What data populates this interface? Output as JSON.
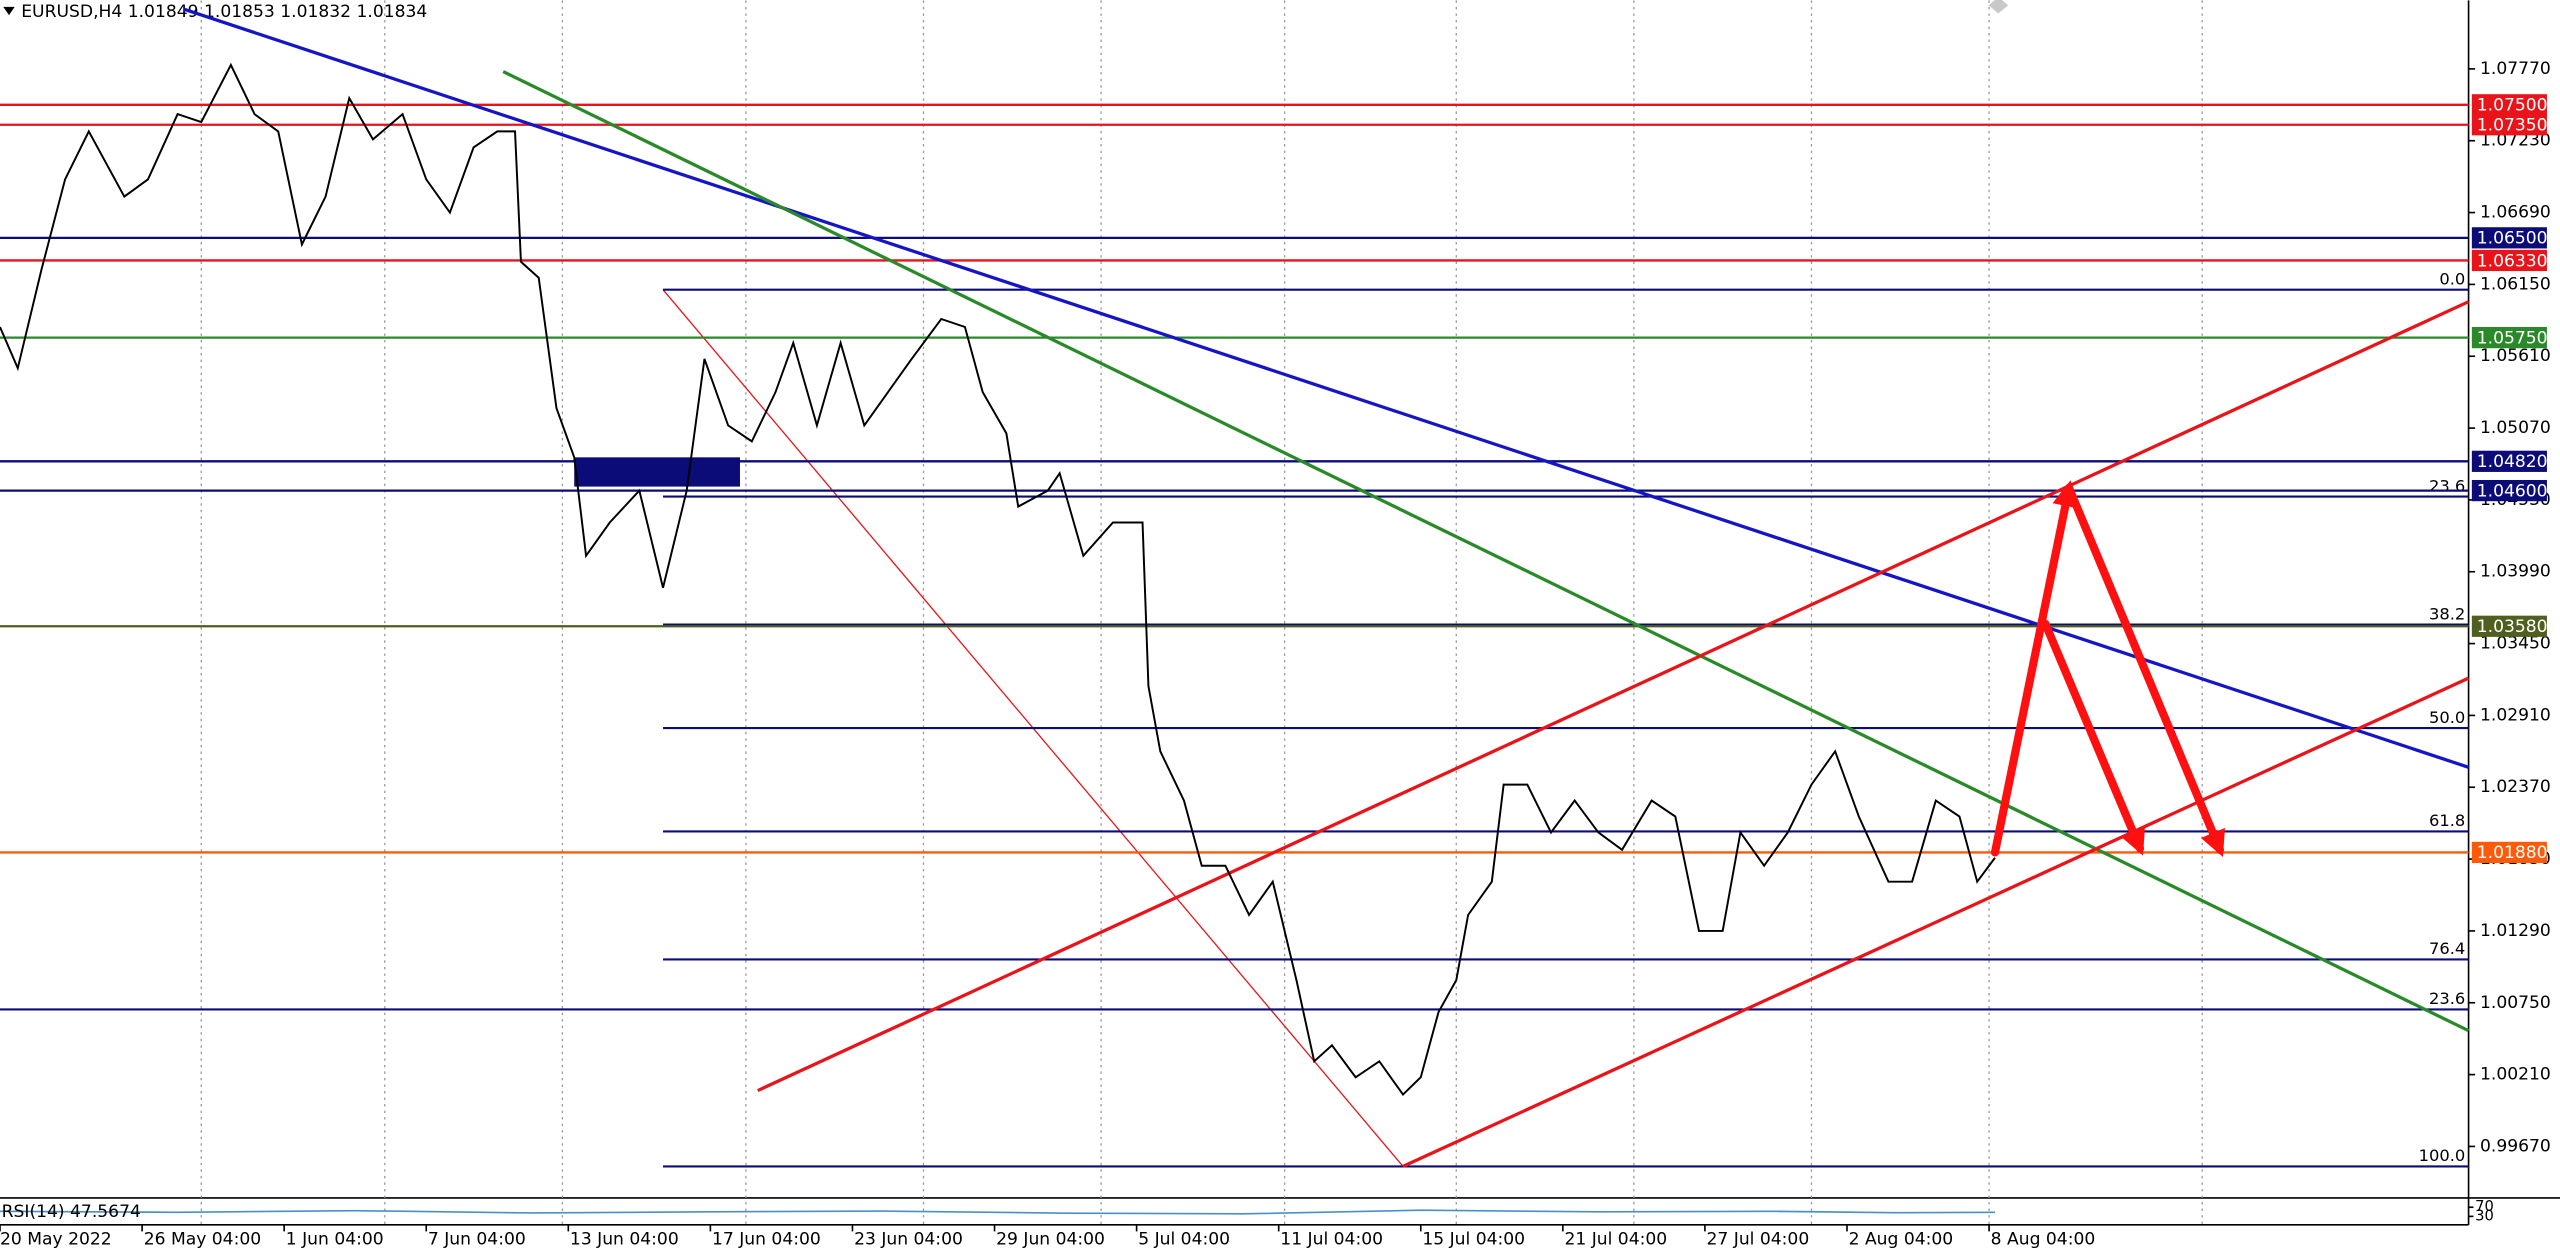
{
  "chart_data": {
    "type": "line",
    "header": "EURUSD,H4  1.01849 1.01853 1.01832 1.01834",
    "color": "#000000",
    "x": [
      0,
      3,
      7,
      11,
      15,
      21,
      25,
      30,
      34,
      39,
      43,
      47,
      51,
      55,
      59,
      63,
      68,
      72,
      76,
      80,
      84,
      87,
      88,
      91,
      94,
      97,
      99,
      103,
      108,
      112,
      116,
      119,
      123,
      127,
      131,
      134,
      138,
      142,
      146,
      150,
      154,
      159,
      163,
      166,
      170,
      172,
      177,
      179,
      183,
      188,
      193,
      194,
      196,
      200,
      203,
      207,
      211,
      215,
      219,
      222,
      225,
      229,
      233,
      237,
      240,
      243,
      246,
      248,
      252,
      254,
      258,
      262,
      266,
      270,
      274,
      279,
      283,
      287,
      291,
      294,
      298,
      302,
      306,
      310,
      314,
      319,
      323,
      327,
      331,
      334,
      337
    ],
    "values": [
      1.0583,
      1.0552,
      1.0626,
      1.0694,
      1.073,
      1.0681,
      1.0694,
      1.0743,
      1.0737,
      1.078,
      1.0743,
      1.073,
      1.0645,
      1.0681,
      1.0755,
      1.0724,
      1.0743,
      1.0694,
      1.0669,
      1.0718,
      1.073,
      1.073,
      1.0632,
      1.062,
      1.0522,
      1.0485,
      1.0411,
      1.0436,
      1.046,
      1.0387,
      1.046,
      1.0559,
      1.0509,
      1.0497,
      1.0534,
      1.0571,
      1.0509,
      1.0571,
      1.0509,
      1.0534,
      1.0559,
      1.0589,
      1.0583,
      1.0534,
      1.0503,
      1.0448,
      1.046,
      1.0473,
      1.0411,
      1.0436,
      1.0436,
      1.0313,
      1.0264,
      1.0227,
      1.0178,
      1.0178,
      1.0141,
      1.0166,
      1.0092,
      1.0031,
      1.0043,
      1.0019,
      1.0031,
      1.0006,
      1.0019,
      1.0068,
      1.0092,
      1.0141,
      1.0166,
      1.0239,
      1.0239,
      1.0203,
      1.0227,
      1.0203,
      1.019,
      1.0227,
      1.0215,
      1.0129,
      1.0129,
      1.0203,
      1.0178,
      1.0203,
      1.0239,
      1.0264,
      1.0215,
      1.0166,
      1.0166,
      1.0227,
      1.0215,
      1.0166,
      1.0184
    ],
    "xlim": [
      0,
      417
    ],
    "ylim": [
      0.99289,
      1.08285
    ],
    "xticks": [
      {
        "value": 0,
        "label": "20 May 2022"
      },
      {
        "value": 24,
        "label": "26 May 04:00"
      },
      {
        "value": 48,
        "label": "1 Jun 04:00"
      },
      {
        "value": 72,
        "label": "7 Jun 04:00"
      },
      {
        "value": 96,
        "label": "13 Jun 04:00"
      },
      {
        "value": 120,
        "label": "17 Jun 04:00"
      },
      {
        "value": 144,
        "label": "23 Jun 04:00"
      },
      {
        "value": 168,
        "label": "29 Jun 04:00"
      },
      {
        "value": 192,
        "label": "5 Jul 04:00"
      },
      {
        "value": 216,
        "label": "11 Jul 04:00"
      },
      {
        "value": 240,
        "label": "15 Jul 04:00"
      },
      {
        "value": 264,
        "label": "21 Jul 04:00"
      },
      {
        "value": 288,
        "label": "27 Jul 04:00"
      },
      {
        "value": 312,
        "label": "2 Aug 04:00"
      },
      {
        "value": 336,
        "label": "8 Aug 04:00"
      }
    ],
    "yticks": [
      {
        "value": 1.0777,
        "label": "1.07770"
      },
      {
        "value": 1.0723,
        "label": "1.07230"
      },
      {
        "value": 1.0669,
        "label": "1.06690"
      },
      {
        "value": 1.0615,
        "label": "1.06150"
      },
      {
        "value": 1.0561,
        "label": "1.05610"
      },
      {
        "value": 1.0507,
        "label": "1.05070"
      },
      {
        "value": 1.0453,
        "label": "1.04530"
      },
      {
        "value": 1.0399,
        "label": "1.03990"
      },
      {
        "value": 1.0345,
        "label": "1.03450"
      },
      {
        "value": 1.0291,
        "label": "1.02910"
      },
      {
        "value": 1.0237,
        "label": "1.02370"
      },
      {
        "value": 1.0183,
        "label": "1.01830"
      },
      {
        "value": 1.0129,
        "label": "1.01290"
      },
      {
        "value": 1.0075,
        "label": "1.00750"
      },
      {
        "value": 1.0021,
        "label": "1.00210"
      },
      {
        "value": 0.9967,
        "label": "0.99670"
      }
    ],
    "xgrid": [
      34,
      65,
      95,
      126,
      156,
      186,
      217,
      246,
      276,
      306,
      336,
      372
    ],
    "levels": [
      {
        "value": 1.075,
        "label": "1.07500",
        "color": "#e8141a"
      },
      {
        "value": 1.0735,
        "label": "1.07350",
        "color": "#e8141a"
      },
      {
        "value": 1.065,
        "label": "1.06500",
        "color": "#0c0c78"
      },
      {
        "value": 1.0633,
        "label": "1.06330",
        "color": "#e8141a"
      },
      {
        "value": 1.0575,
        "label": "1.05750",
        "color": "#2a8a2a"
      },
      {
        "value": 1.0482,
        "label": "1.04820",
        "color": "#0c0c78"
      },
      {
        "value": 1.046,
        "label": "1.04600",
        "color": "#0c0c78"
      },
      {
        "value": 1.0358,
        "label": "1.03580",
        "color": "#4f5f1f"
      },
      {
        "value": 1.0188,
        "label": "1.01880",
        "color": "#ff5a0a"
      }
    ],
    "fib": {
      "start": 112,
      "end": 237,
      "high": 1.0611,
      "low": 0.9952,
      "color": "#0c0c78",
      "trend_color": "#e8141a",
      "levels": [
        {
          "value": 0,
          "label": "0.0"
        },
        23.6,
        38.2,
        {
          "value": 50,
          "label": "50.0"
        },
        61.8,
        76.4,
        {
          "value": 100,
          "label": "100.0"
        }
      ]
    },
    "fib_extra": {
      "level": 23.6,
      "price": 1.007,
      "color": "#0c0c78"
    },
    "trendlines": [
      {
        "color": "#1515c8",
        "points": [
          [
            31,
            1.0822
          ],
          [
            417,
            1.0252
          ]
        ]
      },
      {
        "color": "#2a8a2a",
        "points": [
          [
            85,
            1.0775
          ],
          [
            417,
            1.0054
          ]
        ]
      },
      {
        "color": "#e8141a",
        "points": [
          [
            128,
            1.0009
          ],
          [
            417,
            1.0602
          ]
        ]
      },
      {
        "color": "#e8141a",
        "points": [
          [
            237,
            0.9952
          ],
          [
            417,
            1.0319
          ]
        ]
      }
    ],
    "arrows": {
      "color": "#ff1010",
      "segments": [
        [
          [
            337,
            1.0188
          ],
          [
            349.5,
            1.0462
          ]
        ],
        [
          [
            349.5,
            1.0462
          ],
          [
            375,
            1.019
          ]
        ],
        [
          [
            345.5,
            1.036
          ],
          [
            361.5,
            1.0191
          ]
        ]
      ]
    },
    "rect": {
      "x": [
        97,
        125
      ],
      "y": [
        1.0463,
        1.0485
      ],
      "color": "#0c0c78"
    },
    "rsi": {
      "label": "RSI(14) 47.5674",
      "ylim": [
        0,
        100
      ],
      "yticks": [
        70,
        30
      ],
      "color": "#4a90c8",
      "x": [
        0,
        30,
        60,
        90,
        120,
        150,
        180,
        210,
        240,
        270,
        300,
        320,
        337
      ],
      "values": [
        52,
        48,
        55,
        45,
        50,
        53,
        44,
        41,
        57,
        50,
        52,
        46,
        47.5674
      ]
    }
  }
}
